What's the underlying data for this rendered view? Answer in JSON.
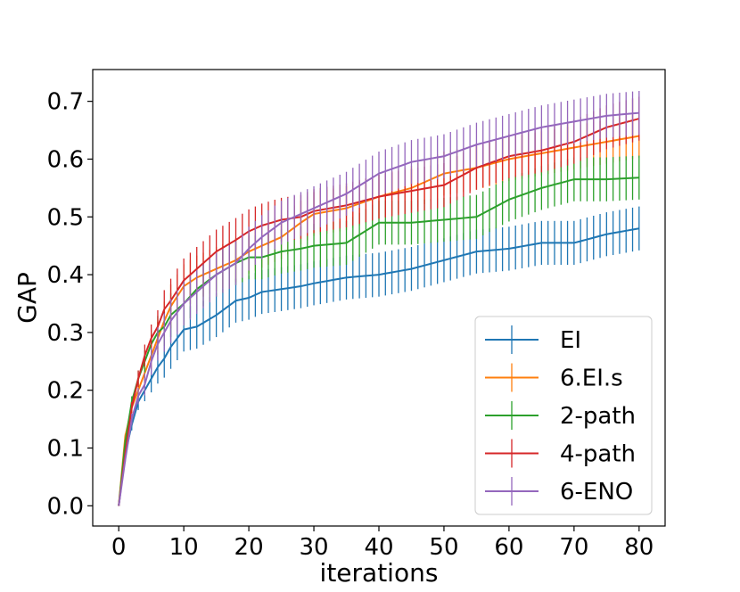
{
  "chart_data": {
    "type": "line",
    "title": "",
    "xlabel": "iterations",
    "ylabel": "GAP",
    "xlim": [
      -4,
      84
    ],
    "ylim": [
      -0.035,
      0.755
    ],
    "xticks": [
      0,
      10,
      20,
      30,
      40,
      50,
      60,
      70,
      80
    ],
    "xtick_labels": [
      "0",
      "10",
      "20",
      "30",
      "40",
      "50",
      "60",
      "70",
      "80"
    ],
    "yticks": [
      0.0,
      0.1,
      0.2,
      0.3,
      0.4,
      0.5,
      0.6,
      0.7
    ],
    "ytick_labels": [
      "0.0",
      "0.1",
      "0.2",
      "0.3",
      "0.4",
      "0.5",
      "0.6",
      "0.7"
    ],
    "legend_position": "bottom-right",
    "error_bar_halfwidth": 0.038,
    "x": [
      0,
      1,
      2,
      3,
      4,
      5,
      6,
      7,
      8,
      10,
      12,
      15,
      18,
      20,
      22,
      25,
      28,
      30,
      35,
      40,
      45,
      50,
      55,
      60,
      65,
      70,
      75,
      80
    ],
    "series": [
      {
        "name": "EI",
        "color": "#1f77b4",
        "values": [
          0.0,
          0.09,
          0.14,
          0.18,
          0.2,
          0.22,
          0.24,
          0.255,
          0.275,
          0.305,
          0.31,
          0.33,
          0.355,
          0.36,
          0.37,
          0.375,
          0.38,
          0.385,
          0.395,
          0.4,
          0.41,
          0.425,
          0.44,
          0.445,
          0.455,
          0.455,
          0.47,
          0.48
        ]
      },
      {
        "name": "6.EI.s",
        "color": "#ff7f0e",
        "values": [
          0.0,
          0.12,
          0.17,
          0.2,
          0.23,
          0.26,
          0.29,
          0.32,
          0.345,
          0.38,
          0.395,
          0.41,
          0.425,
          0.44,
          0.45,
          0.465,
          0.49,
          0.505,
          0.515,
          0.535,
          0.55,
          0.575,
          0.585,
          0.6,
          0.61,
          0.62,
          0.63,
          0.64
        ]
      },
      {
        "name": "2-path",
        "color": "#2ca02c",
        "values": [
          0.0,
          0.11,
          0.18,
          0.22,
          0.25,
          0.28,
          0.3,
          0.31,
          0.33,
          0.35,
          0.375,
          0.4,
          0.42,
          0.43,
          0.43,
          0.44,
          0.445,
          0.45,
          0.455,
          0.49,
          0.49,
          0.495,
          0.5,
          0.53,
          0.55,
          0.565,
          0.565,
          0.568
        ]
      },
      {
        "name": "4-path",
        "color": "#d62728",
        "values": [
          0.0,
          0.09,
          0.17,
          0.22,
          0.26,
          0.29,
          0.31,
          0.34,
          0.355,
          0.39,
          0.41,
          0.44,
          0.46,
          0.475,
          0.485,
          0.495,
          0.5,
          0.51,
          0.52,
          0.535,
          0.545,
          0.555,
          0.585,
          0.605,
          0.615,
          0.63,
          0.655,
          0.67
        ]
      },
      {
        "name": "6-ENO",
        "color": "#9467bd",
        "values": [
          0.0,
          0.08,
          0.15,
          0.19,
          0.21,
          0.25,
          0.28,
          0.3,
          0.32,
          0.35,
          0.37,
          0.4,
          0.42,
          0.445,
          0.465,
          0.49,
          0.505,
          0.515,
          0.54,
          0.575,
          0.595,
          0.605,
          0.625,
          0.64,
          0.655,
          0.665,
          0.675,
          0.68
        ]
      }
    ]
  }
}
